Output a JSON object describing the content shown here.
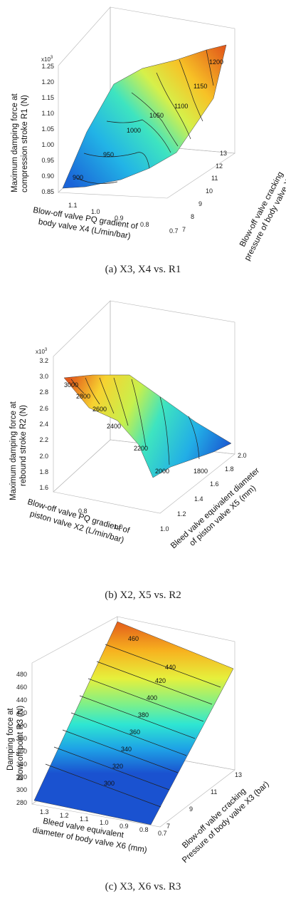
{
  "chart_data": [
    {
      "type": "surface3d",
      "caption": "(a)  X3,  X4  vs.  R1",
      "zlabel_lines": [
        "Maximum damping force at",
        "compression stroke R1 (N)"
      ],
      "xlabel_lines": [
        "Blow-off valve PQ gradient of",
        "body valve X4 (L/min/bar)"
      ],
      "ylabel_lines": [
        "Blow-off valve cracking",
        "pressure of body valve X3 (bar)"
      ],
      "multiplier": "x10",
      "multiplier_exp": "3",
      "z_ticks": [
        "0.85",
        "0.90",
        "0.95",
        "1.00",
        "1.05",
        "1.10",
        "1.15",
        "1.20",
        "1.25"
      ],
      "x_ticks": [
        "1.1",
        "1.0",
        "0.9",
        "0.8",
        "0.7"
      ],
      "y_ticks": [
        "7",
        "8",
        "9",
        "10",
        "11",
        "12",
        "13"
      ],
      "contour_labels": [
        "900",
        "950",
        "1000",
        "1050",
        "1100",
        "1150",
        "1200"
      ]
    },
    {
      "type": "surface3d",
      "caption": "(b)  X2,  X5  vs.  R2",
      "zlabel_lines": [
        "Maximum damping force at",
        "rebound stroke R2 (N)"
      ],
      "xlabel_lines": [
        "Blow-off valve PQ gradient of",
        "piston valve X2 (L/min/bar)"
      ],
      "ylabel_lines": [
        "Bleed valve equivalent diameter",
        "of piston valve X5 (mm)"
      ],
      "multiplier": "x10",
      "multiplier_exp": "3",
      "z_ticks": [
        "1.6",
        "1.8",
        "2.0",
        "2.2",
        "2.4",
        "2.6",
        "2.8",
        "3.0",
        "3.2"
      ],
      "x_ticks": [
        "0.8",
        "1.0"
      ],
      "y_ticks": [
        "1.0",
        "1.2",
        "1.4",
        "1.6",
        "1.8",
        "2.0"
      ],
      "contour_labels": [
        "3000",
        "2800",
        "2600",
        "2400",
        "2200",
        "2000",
        "1800"
      ]
    },
    {
      "type": "surface3d",
      "caption": "(c)  X3,  X6  vs.  R3",
      "zlabel_lines": [
        "Damping force at",
        "blow-off point R3 (N)"
      ],
      "xlabel_lines": [
        "Bleed valve equivalent",
        "diameter of body valve X6 (mm)"
      ],
      "ylabel_lines": [
        "Blow-off valve cracking",
        "Pressure of body valve X3  (bar)"
      ],
      "multiplier": "",
      "multiplier_exp": "",
      "z_ticks": [
        "280",
        "300",
        "320",
        "340",
        "360",
        "380",
        "400",
        "420",
        "440",
        "460",
        "480"
      ],
      "x_ticks": [
        "1.3",
        "1.2",
        "1.1",
        "1.0",
        "0.9",
        "0.8",
        "0.7"
      ],
      "y_ticks": [
        "7",
        "9",
        "11",
        "13"
      ],
      "contour_labels": [
        "460",
        "440",
        "420",
        "400",
        "380",
        "360",
        "340",
        "320",
        "300"
      ]
    }
  ]
}
